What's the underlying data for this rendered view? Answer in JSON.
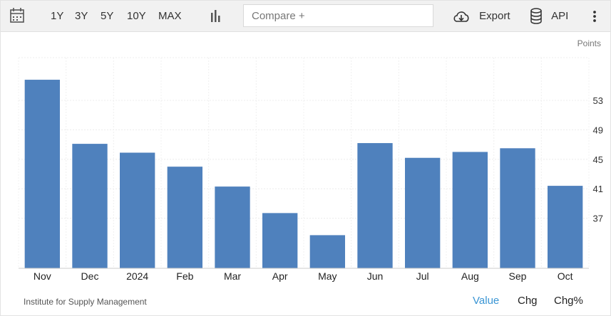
{
  "toolbar": {
    "ranges": [
      "1Y",
      "3Y",
      "5Y",
      "10Y",
      "MAX"
    ],
    "compare_placeholder": "Compare +",
    "export_label": "Export",
    "api_label": "API"
  },
  "footer": {
    "source": "Institute for Supply Management",
    "tabs": [
      "Value",
      "Chg",
      "Chg%"
    ],
    "active_tab": "Value"
  },
  "colors": {
    "bar": "#4f81bd",
    "active_tab": "#3a95d4"
  },
  "chart_data": {
    "type": "bar",
    "unit_label": "Points",
    "categories": [
      "Nov",
      "Dec",
      "2024",
      "Feb",
      "Mar",
      "Apr",
      "May",
      "Jun",
      "Jul",
      "Aug",
      "Sep",
      "Oct"
    ],
    "values": [
      55.8,
      47.1,
      45.9,
      44.0,
      41.3,
      37.7,
      34.7,
      47.2,
      45.2,
      46.0,
      46.5,
      41.4
    ],
    "y_ticks": [
      37,
      41,
      45,
      49,
      53
    ],
    "ylim": [
      30.2,
      58.8
    ],
    "grid": true
  }
}
